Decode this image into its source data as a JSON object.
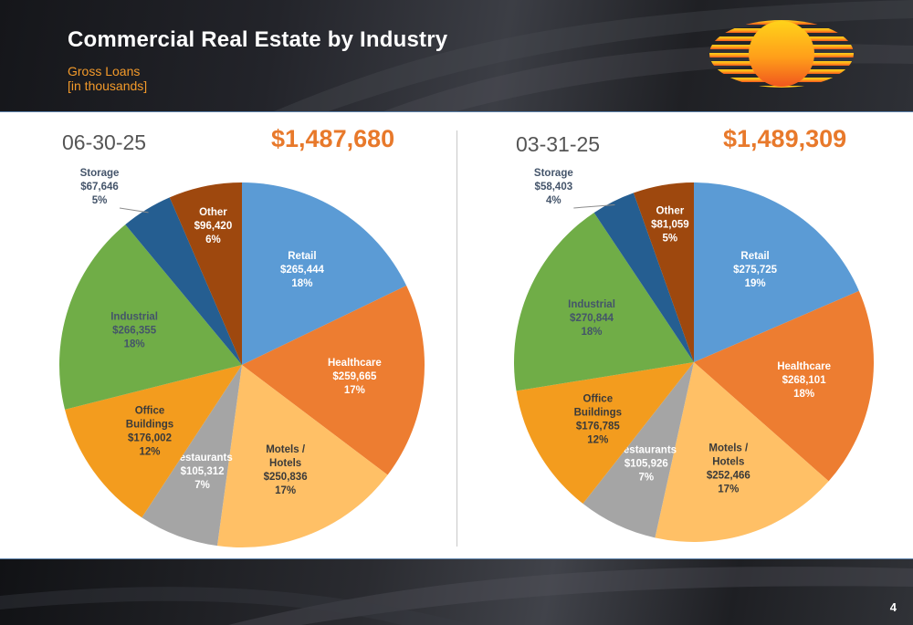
{
  "header": {
    "title": "Commercial Real Estate by Industry",
    "subtitle_line1": "Gross Loans",
    "subtitle_line2": "[in thousands]"
  },
  "page_number": "4",
  "colors": {
    "Retail": "#5b9bd5",
    "Healthcare": "#ed7d31",
    "Motels": "#ffc066",
    "Restaurants": "#a5a5a5",
    "Office": "#f39c1e",
    "Industrial": "#70ad47",
    "Storage": "#255e91",
    "Other": "#9e480e",
    "accent_orange": "#e8792b"
  },
  "chart_data": [
    {
      "type": "pie",
      "date": "06-30-25",
      "total": "$1,487,680",
      "slices": [
        {
          "name": "Retail",
          "lines": [
            "Retail"
          ],
          "value": 265444,
          "value_label": "$265,444",
          "pct": "18%"
        },
        {
          "name": "Healthcare",
          "lines": [
            "Healthcare"
          ],
          "value": 259665,
          "value_label": "$259,665",
          "pct": "17%"
        },
        {
          "name": "Motels",
          "lines": [
            "Motels /",
            "Hotels"
          ],
          "value": 250836,
          "value_label": "$250,836",
          "pct": "17%"
        },
        {
          "name": "Restaurants",
          "lines": [
            "Restaurants"
          ],
          "value": 105312,
          "value_label": "$105,312",
          "pct": "7%"
        },
        {
          "name": "Office",
          "lines": [
            "Office",
            "Buildings"
          ],
          "value": 176002,
          "value_label": "$176,002",
          "pct": "12%"
        },
        {
          "name": "Industrial",
          "lines": [
            "Industrial"
          ],
          "value": 266355,
          "value_label": "$266,355",
          "pct": "18%"
        },
        {
          "name": "Storage",
          "lines": [
            "Storage"
          ],
          "value": 67646,
          "value_label": "$67,646",
          "pct": "5%"
        },
        {
          "name": "Other",
          "lines": [
            "Other"
          ],
          "value": 96420,
          "value_label": "$96,420",
          "pct": "6%"
        }
      ]
    },
    {
      "type": "pie",
      "date": "03-31-25",
      "total": "$1,489,309",
      "slices": [
        {
          "name": "Retail",
          "lines": [
            "Retail"
          ],
          "value": 275725,
          "value_label": "$275,725",
          "pct": "19%"
        },
        {
          "name": "Healthcare",
          "lines": [
            "Healthcare"
          ],
          "value": 268101,
          "value_label": "$268,101",
          "pct": "18%"
        },
        {
          "name": "Motels",
          "lines": [
            "Motels /",
            "Hotels"
          ],
          "value": 252466,
          "value_label": "$252,466",
          "pct": "17%"
        },
        {
          "name": "Restaurants",
          "lines": [
            "Restaurants"
          ],
          "value": 105926,
          "value_label": "$105,926",
          "pct": "7%"
        },
        {
          "name": "Office",
          "lines": [
            "Office",
            "Buildings"
          ],
          "value": 176785,
          "value_label": "$176,785",
          "pct": "12%"
        },
        {
          "name": "Industrial",
          "lines": [
            "Industrial"
          ],
          "value": 270844,
          "value_label": "$270,844",
          "pct": "18%"
        },
        {
          "name": "Storage",
          "lines": [
            "Storage"
          ],
          "value": 58403,
          "value_label": "$58,403",
          "pct": "4%"
        },
        {
          "name": "Other",
          "lines": [
            "Other"
          ],
          "value": 81059,
          "value_label": "$81,059",
          "pct": "5%"
        }
      ]
    }
  ]
}
